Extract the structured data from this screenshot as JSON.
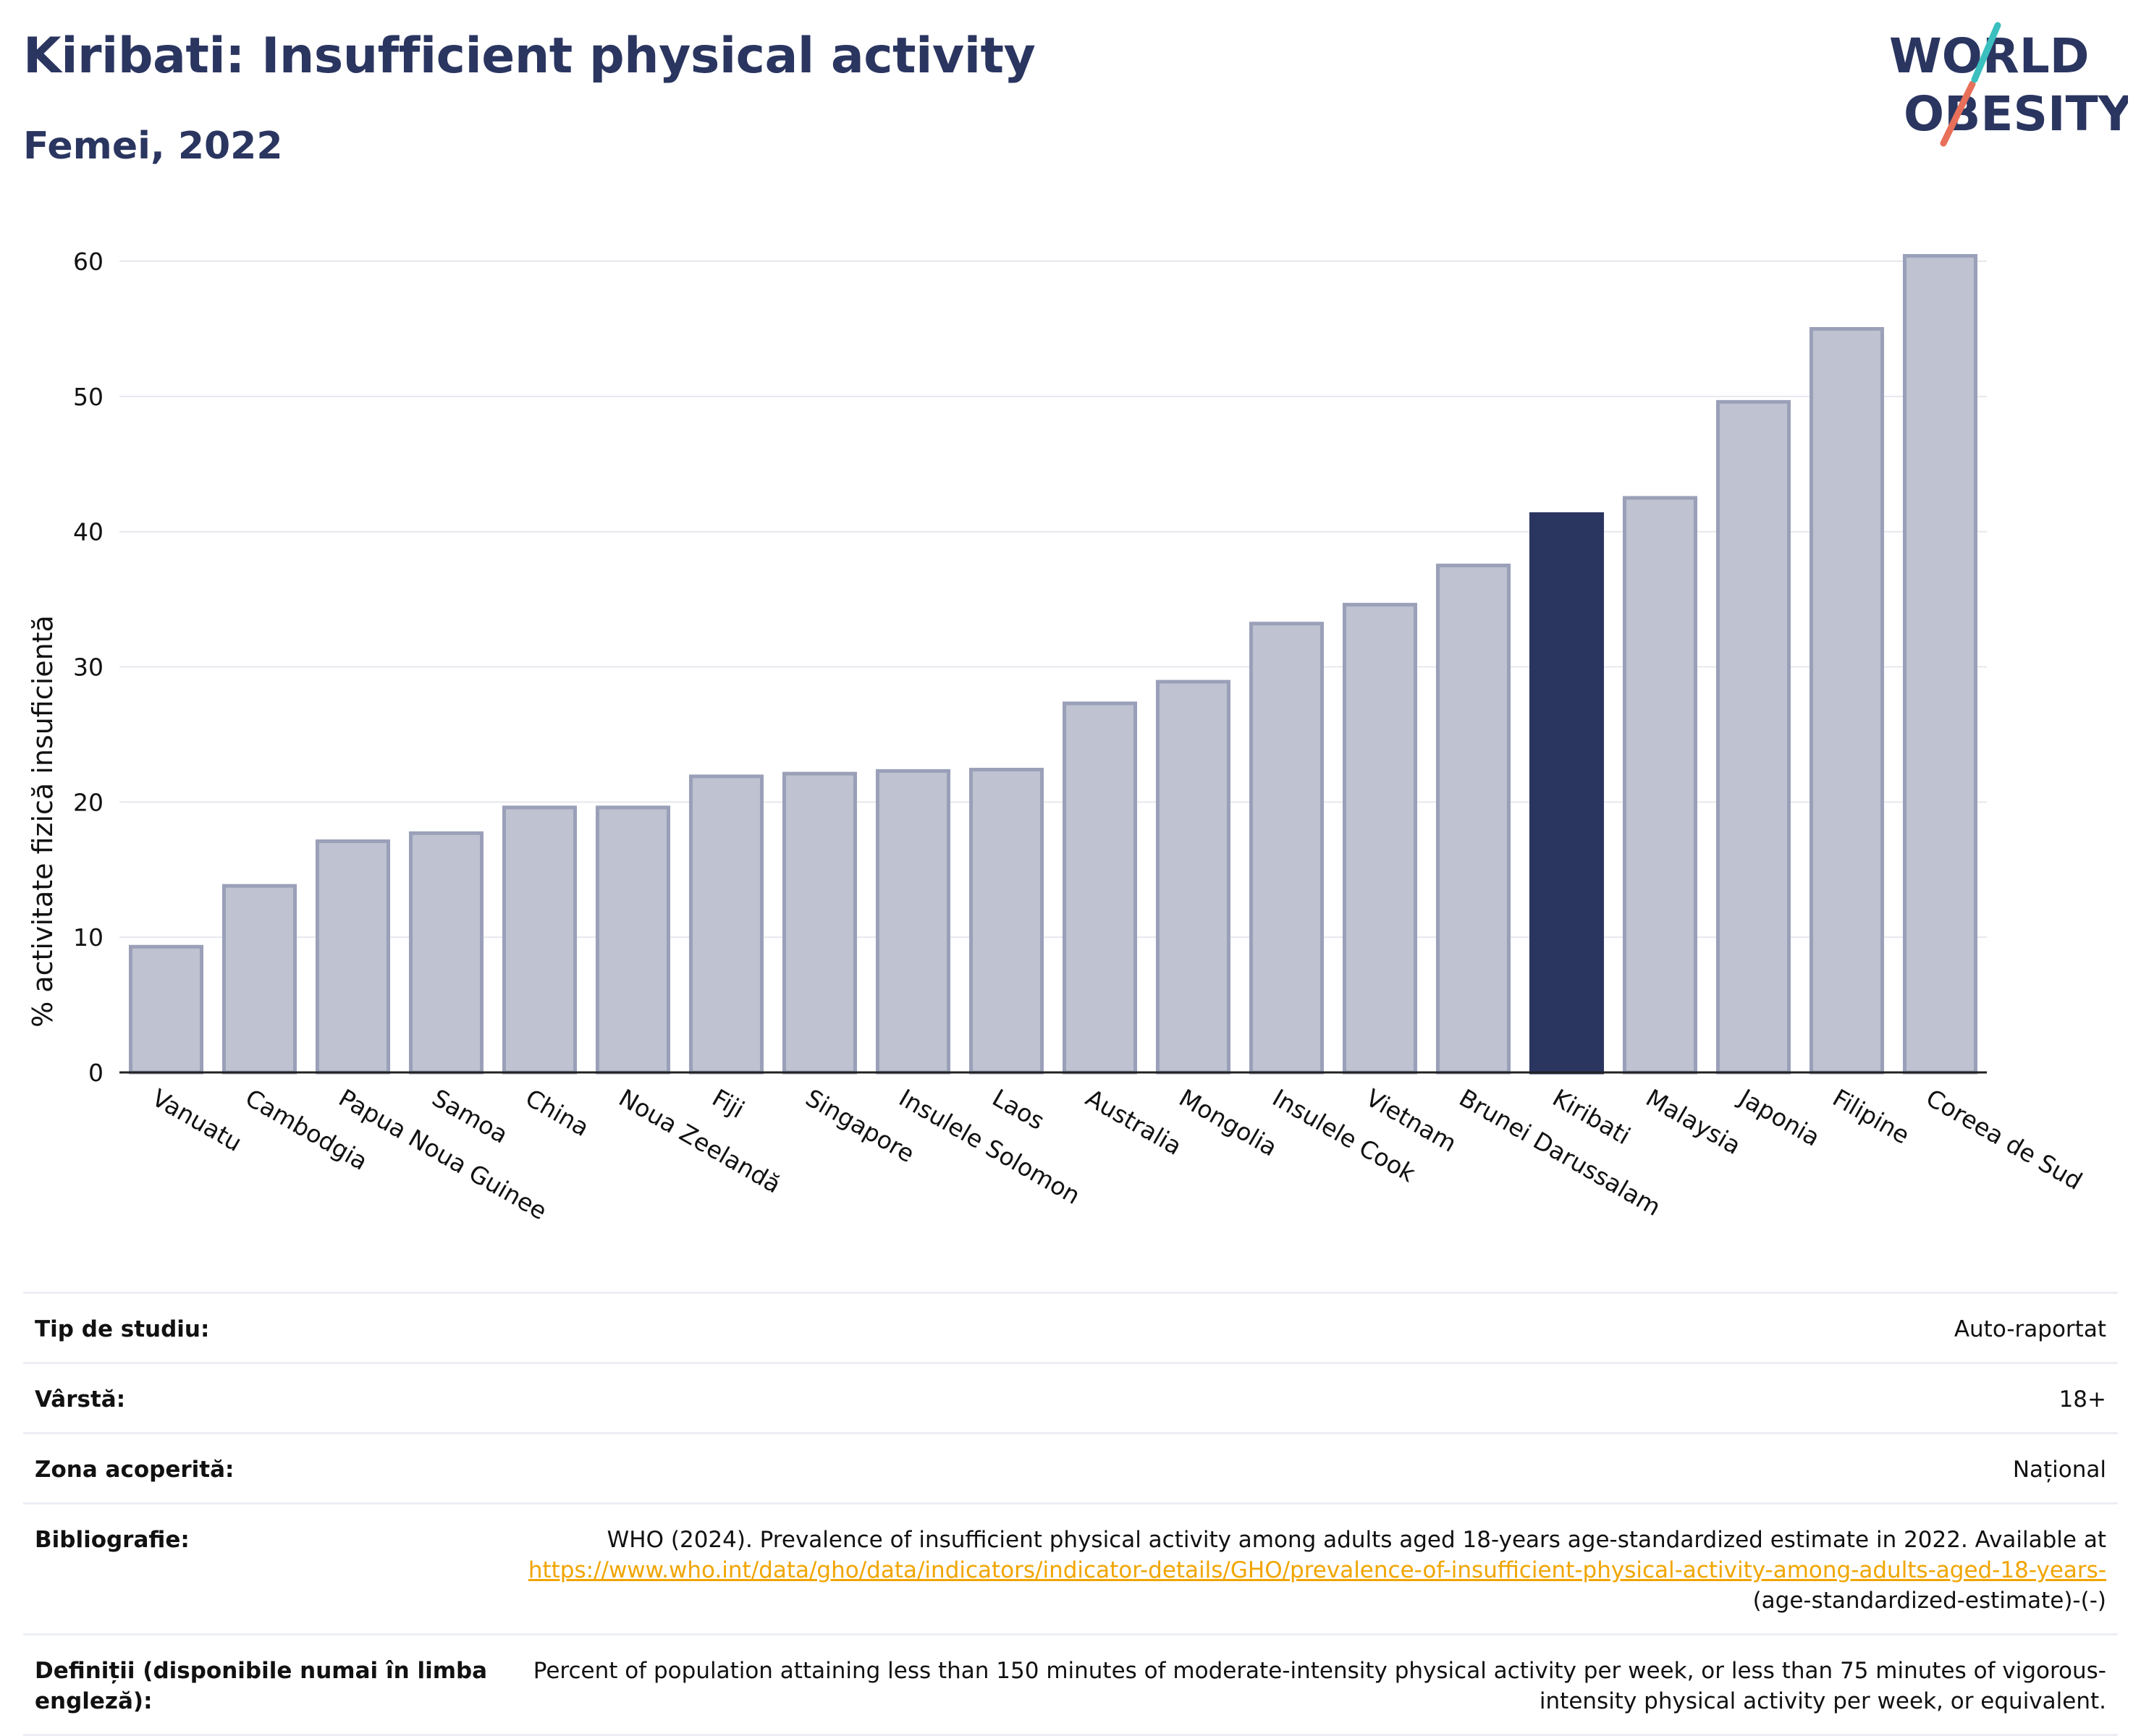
{
  "header": {
    "title": "Kiribati: Insufficient physical activity",
    "subtitle": "Femei, 2022"
  },
  "logo": {
    "line1": "WORLD",
    "line2": "OBESITY"
  },
  "chart_data": {
    "type": "bar",
    "categories": [
      "Vanuatu",
      "Cambodgia",
      "Papua Noua Guinee",
      "Samoa",
      "China",
      "Noua Zeelandă",
      "Fiji",
      "Singapore",
      "Insulele Solomon",
      "Laos",
      "Australia",
      "Mongolia",
      "Insulele Cook",
      "Vietnam",
      "Brunei Darussalam",
      "Kiribati",
      "Malaysia",
      "Japonia",
      "Filipine",
      "Coreea de Sud"
    ],
    "values": [
      9.3,
      13.8,
      17.1,
      17.7,
      19.6,
      19.6,
      21.9,
      22.1,
      22.3,
      22.4,
      27.3,
      28.9,
      33.2,
      34.6,
      37.5,
      41.3,
      42.5,
      49.6,
      55.0,
      60.4
    ],
    "highlight": "Kiribati",
    "ylabel": "% activitate fizică insuficientă",
    "ylim": [
      0,
      63
    ],
    "yticks": [
      0,
      10,
      20,
      30,
      40,
      50,
      60
    ],
    "grid": true,
    "colors": {
      "bar": "#bec2d1",
      "bar_border": "#9aa0b8",
      "highlight": "#2a3560"
    }
  },
  "info": {
    "rows": [
      {
        "label": "Tip de studiu:",
        "value": "Auto-raportat"
      },
      {
        "label": "Vârstă:",
        "value": "18+"
      },
      {
        "label": "Zona acoperită:",
        "value": "Național"
      },
      {
        "label": "Bibliografie:",
        "value": "WHO (2024). Prevalence of insufficient physical activity among adults aged 18-years age-standardized estimate in 2022. Available at",
        "link": "https://www.who.int/data/gho/data/indicators/indicator-details/GHO/prevalence-of-insufficient-physical-activity-among-adults-aged-18-years-",
        "suffix": "(age-standardized-estimate)-(-)"
      },
      {
        "label": "Definiții (disponibile numai în limba engleză):",
        "value": "Percent of population attaining less than 150 minutes of moderate-intensity physical activity per week, or less than 75 minutes of vigorous-intensity physical activity per week, or equivalent."
      }
    ]
  }
}
